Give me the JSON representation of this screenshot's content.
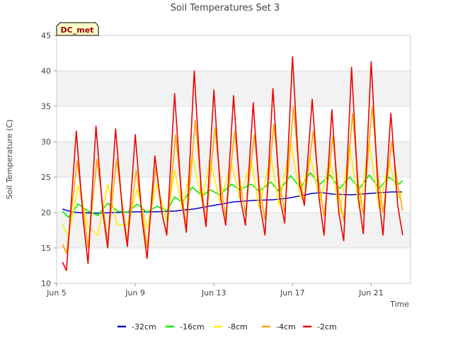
{
  "chart_data": {
    "type": "line",
    "title": "Soil Temperatures Set 3",
    "xlabel": "Time",
    "ylabel": "Soil Temperature (C)",
    "badge": "DC_met",
    "ylim": [
      10,
      45
    ],
    "yticks": [
      10,
      15,
      20,
      25,
      30,
      35,
      40,
      45
    ],
    "xlim": [
      "Jun 5",
      "Jun 23"
    ],
    "xticks": [
      {
        "day": 5,
        "label": "Jun 5"
      },
      {
        "day": 9,
        "label": "Jun 9"
      },
      {
        "day": 13,
        "label": "Jun 13"
      },
      {
        "day": 17,
        "label": "Jun 17"
      },
      {
        "day": 21,
        "label": "Jun 21"
      }
    ],
    "bands": [
      [
        15,
        20
      ],
      [
        25,
        30
      ],
      [
        35,
        40
      ]
    ],
    "legend_position": "bottom",
    "series": [
      {
        "name": "-32cm",
        "color": "#0000cc",
        "points": [
          [
            5.3,
            20.5
          ],
          [
            5.5,
            20.3
          ],
          [
            6,
            20.0
          ],
          [
            7,
            19.9
          ],
          [
            8,
            20.0
          ],
          [
            9,
            20.1
          ],
          [
            10,
            20.1
          ],
          [
            11,
            20.2
          ],
          [
            12,
            20.5
          ],
          [
            13,
            21.0
          ],
          [
            14,
            21.5
          ],
          [
            15,
            21.7
          ],
          [
            16,
            21.8
          ],
          [
            16.7,
            22.0
          ],
          [
            17.3,
            22.3
          ],
          [
            18,
            22.7
          ],
          [
            18.5,
            22.8
          ],
          [
            19,
            22.6
          ],
          [
            20,
            22.5
          ],
          [
            21,
            22.7
          ],
          [
            22,
            22.9
          ],
          [
            22.6,
            22.9
          ]
        ]
      },
      {
        "name": "-16cm",
        "color": "#00ee00",
        "points": [
          [
            5.3,
            20.2
          ],
          [
            5.6,
            19.3
          ],
          [
            6.1,
            21.2
          ],
          [
            6.6,
            20.2
          ],
          [
            7.1,
            19.6
          ],
          [
            7.6,
            21.3
          ],
          [
            8.1,
            20.2
          ],
          [
            8.6,
            20.0
          ],
          [
            9.1,
            21.2
          ],
          [
            9.6,
            20.0
          ],
          [
            10.1,
            20.9
          ],
          [
            10.6,
            20.2
          ],
          [
            11.0,
            22.2
          ],
          [
            11.4,
            21.4
          ],
          [
            11.9,
            23.6
          ],
          [
            12.4,
            22.3
          ],
          [
            12.8,
            23.2
          ],
          [
            13.3,
            22.5
          ],
          [
            13.9,
            24.0
          ],
          [
            14.3,
            23.2
          ],
          [
            14.9,
            24.0
          ],
          [
            15.3,
            23.0
          ],
          [
            15.9,
            24.3
          ],
          [
            16.3,
            23.0
          ],
          [
            16.9,
            25.2
          ],
          [
            17.4,
            23.5
          ],
          [
            17.9,
            25.6
          ],
          [
            18.4,
            24.0
          ],
          [
            18.9,
            25.3
          ],
          [
            19.4,
            23.4
          ],
          [
            19.9,
            25.0
          ],
          [
            20.4,
            23.4
          ],
          [
            20.9,
            25.3
          ],
          [
            21.4,
            23.4
          ],
          [
            21.9,
            25.0
          ],
          [
            22.4,
            24.0
          ],
          [
            22.6,
            24.5
          ]
        ]
      },
      {
        "name": "-8cm",
        "color": "#ffee00",
        "points": [
          [
            5.3,
            18.3
          ],
          [
            5.6,
            16.6
          ],
          [
            6.1,
            23.8
          ],
          [
            6.6,
            18.0
          ],
          [
            7.1,
            16.8
          ],
          [
            7.6,
            24.0
          ],
          [
            8.1,
            18.2
          ],
          [
            8.6,
            18.3
          ],
          [
            9.1,
            23.3
          ],
          [
            9.6,
            17.7
          ],
          [
            10.1,
            24.0
          ],
          [
            10.6,
            18.8
          ],
          [
            11.0,
            26.0
          ],
          [
            11.4,
            20.3
          ],
          [
            11.9,
            28.0
          ],
          [
            12.4,
            21.6
          ],
          [
            12.8,
            27.5
          ],
          [
            13.3,
            21.5
          ],
          [
            13.9,
            27.0
          ],
          [
            14.3,
            22.0
          ],
          [
            14.9,
            27.3
          ],
          [
            15.3,
            20.6
          ],
          [
            15.9,
            28.0
          ],
          [
            16.3,
            21.0
          ],
          [
            16.9,
            30.0
          ],
          [
            17.4,
            22.0
          ],
          [
            17.9,
            28.0
          ],
          [
            18.4,
            21.5
          ],
          [
            18.9,
            27.5
          ],
          [
            19.4,
            19.8
          ],
          [
            19.9,
            29.5
          ],
          [
            20.4,
            20.5
          ],
          [
            20.9,
            30.0
          ],
          [
            21.4,
            20.5
          ],
          [
            21.9,
            27.3
          ],
          [
            22.4,
            22.0
          ],
          [
            22.6,
            23.0
          ]
        ]
      },
      {
        "name": "-4cm",
        "color": "#ffa500",
        "points": [
          [
            5.3,
            15.5
          ],
          [
            5.5,
            14.2
          ],
          [
            6.05,
            27.3
          ],
          [
            6.35,
            20.5
          ],
          [
            6.6,
            15.0
          ],
          [
            7.05,
            27.5
          ],
          [
            7.35,
            21.0
          ],
          [
            7.6,
            15.8
          ],
          [
            8.05,
            27.5
          ],
          [
            8.35,
            21.0
          ],
          [
            8.6,
            16.0
          ],
          [
            9.05,
            26.0
          ],
          [
            9.35,
            20.0
          ],
          [
            9.6,
            15.0
          ],
          [
            10.05,
            26.5
          ],
          [
            10.35,
            20.0
          ],
          [
            10.6,
            17.0
          ],
          [
            11.05,
            31.0
          ],
          [
            11.35,
            23.0
          ],
          [
            11.6,
            17.8
          ],
          [
            12.05,
            33.0
          ],
          [
            12.35,
            24.0
          ],
          [
            12.6,
            18.5
          ],
          [
            13.05,
            32.0
          ],
          [
            13.35,
            24.0
          ],
          [
            13.6,
            19.3
          ],
          [
            14.05,
            31.5
          ],
          [
            14.35,
            24.0
          ],
          [
            14.6,
            19.8
          ],
          [
            15.05,
            31.0
          ],
          [
            15.35,
            23.0
          ],
          [
            15.6,
            19.0
          ],
          [
            16.05,
            32.5
          ],
          [
            16.35,
            24.0
          ],
          [
            16.6,
            20.0
          ],
          [
            17.05,
            35.0
          ],
          [
            17.35,
            25.0
          ],
          [
            17.6,
            21.5
          ],
          [
            18.05,
            31.5
          ],
          [
            18.35,
            24.0
          ],
          [
            18.6,
            19.5
          ],
          [
            19.05,
            30.8
          ],
          [
            19.35,
            22.5
          ],
          [
            19.6,
            18.8
          ],
          [
            20.05,
            34.0
          ],
          [
            20.35,
            24.0
          ],
          [
            20.6,
            19.8
          ],
          [
            21.05,
            35.0
          ],
          [
            21.35,
            25.0
          ],
          [
            21.6,
            20.0
          ],
          [
            22.05,
            30.0
          ],
          [
            22.35,
            24.0
          ],
          [
            22.6,
            20.3
          ]
        ]
      },
      {
        "name": "-2cm",
        "color": "#ee0000",
        "points": [
          [
            5.3,
            13.0
          ],
          [
            5.5,
            11.8
          ],
          [
            6.0,
            31.5
          ],
          [
            6.35,
            19.0
          ],
          [
            6.6,
            12.8
          ],
          [
            7.0,
            32.2
          ],
          [
            7.35,
            20.0
          ],
          [
            7.6,
            15.0
          ],
          [
            8.0,
            31.8
          ],
          [
            8.35,
            20.0
          ],
          [
            8.6,
            15.2
          ],
          [
            9.0,
            31.0
          ],
          [
            9.35,
            19.0
          ],
          [
            9.6,
            13.5
          ],
          [
            10.0,
            28.0
          ],
          [
            10.35,
            20.0
          ],
          [
            10.6,
            16.8
          ],
          [
            11.0,
            36.8
          ],
          [
            11.35,
            22.0
          ],
          [
            11.6,
            17.2
          ],
          [
            12.0,
            40.0
          ],
          [
            12.35,
            23.0
          ],
          [
            12.6,
            18.0
          ],
          [
            13.0,
            37.3
          ],
          [
            13.35,
            22.0
          ],
          [
            13.6,
            18.2
          ],
          [
            14.0,
            36.5
          ],
          [
            14.35,
            22.0
          ],
          [
            14.6,
            18.2
          ],
          [
            15.0,
            35.5
          ],
          [
            15.35,
            21.0
          ],
          [
            15.6,
            16.8
          ],
          [
            16.0,
            37.5
          ],
          [
            16.35,
            22.0
          ],
          [
            16.6,
            18.5
          ],
          [
            17.0,
            42.0
          ],
          [
            17.35,
            24.0
          ],
          [
            17.6,
            21.0
          ],
          [
            18.0,
            36.0
          ],
          [
            18.35,
            22.0
          ],
          [
            18.6,
            16.8
          ],
          [
            19.0,
            34.5
          ],
          [
            19.35,
            20.0
          ],
          [
            19.6,
            16.0
          ],
          [
            20.0,
            40.5
          ],
          [
            20.35,
            22.0
          ],
          [
            20.6,
            17.0
          ],
          [
            21.0,
            41.3
          ],
          [
            21.35,
            23.0
          ],
          [
            21.6,
            16.8
          ],
          [
            22.0,
            34.0
          ],
          [
            22.35,
            21.0
          ],
          [
            22.6,
            16.8
          ]
        ]
      }
    ]
  }
}
